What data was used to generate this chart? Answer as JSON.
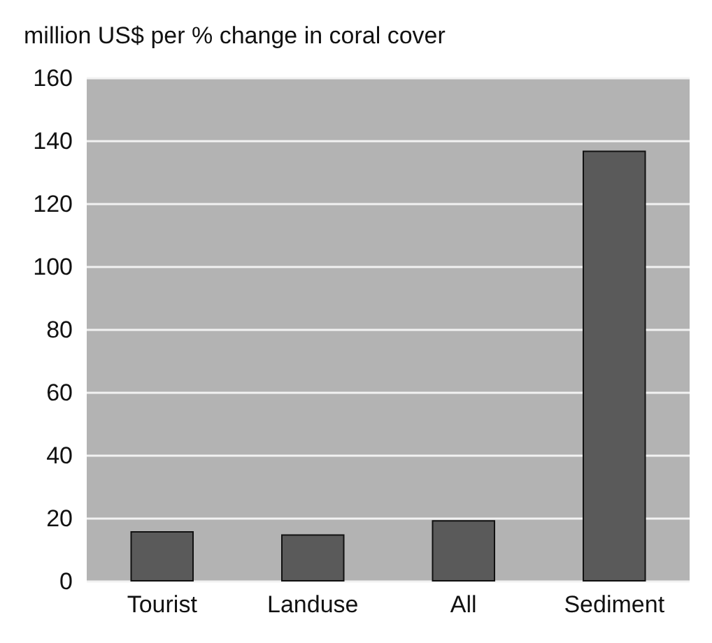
{
  "chart_data": {
    "type": "bar",
    "ylabel": "million US$ per % change in coral cover",
    "categories": [
      "Tourist",
      "Landuse",
      "All",
      "Sediment"
    ],
    "values": [
      16,
      15,
      19.5,
      137
    ],
    "color": "#5a5a5a",
    "ylim": [
      0,
      160
    ],
    "yticks": [
      0,
      20,
      40,
      60,
      80,
      100,
      120,
      140,
      160
    ],
    "grid": "y"
  }
}
